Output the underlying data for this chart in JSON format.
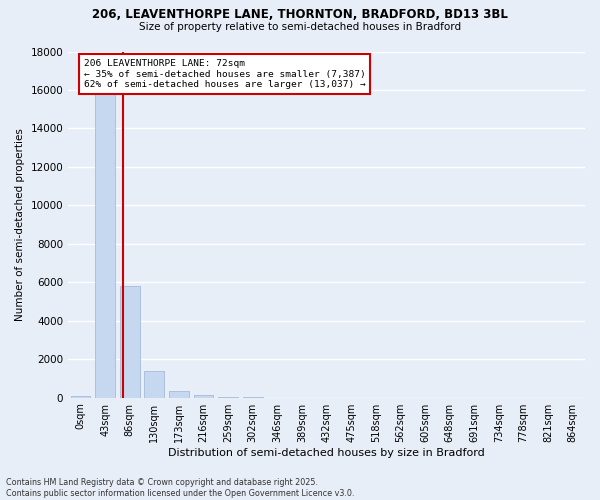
{
  "title_line1": "206, LEAVENTHORPE LANE, THORNTON, BRADFORD, BD13 3BL",
  "title_line2": "Size of property relative to semi-detached houses in Bradford",
  "xlabel": "Distribution of semi-detached houses by size in Bradford",
  "ylabel": "Number of semi-detached properties",
  "annotation_title": "206 LEAVENTHORPE LANE: 72sqm",
  "annotation_line2": "← 35% of semi-detached houses are smaller (7,387)",
  "annotation_line3": "62% of semi-detached houses are larger (13,037) →",
  "footer_line1": "Contains HM Land Registry data © Crown copyright and database right 2025.",
  "footer_line2": "Contains public sector information licensed under the Open Government Licence v3.0.",
  "categories": [
    "0sqm",
    "43sqm",
    "86sqm",
    "130sqm",
    "173sqm",
    "216sqm",
    "259sqm",
    "302sqm",
    "346sqm",
    "389sqm",
    "432sqm",
    "475sqm",
    "518sqm",
    "562sqm",
    "605sqm",
    "648sqm",
    "691sqm",
    "734sqm",
    "778sqm",
    "821sqm",
    "864sqm"
  ],
  "values": [
    100,
    16000,
    5800,
    1400,
    350,
    120,
    40,
    20,
    8,
    3,
    1,
    0,
    0,
    0,
    0,
    0,
    0,
    0,
    0,
    0,
    0
  ],
  "bar_color": "#c5d8ef",
  "property_line_x": 1.72,
  "annotation_box_color": "#ffffff",
  "annotation_box_edge": "#cc0000",
  "ylim": [
    0,
    18000
  ],
  "yticks": [
    0,
    2000,
    4000,
    6000,
    8000,
    10000,
    12000,
    14000,
    16000,
    18000
  ],
  "background_color": "#e8eef8",
  "grid_color": "#ffffff",
  "figsize": [
    6.0,
    5.0
  ],
  "dpi": 100
}
